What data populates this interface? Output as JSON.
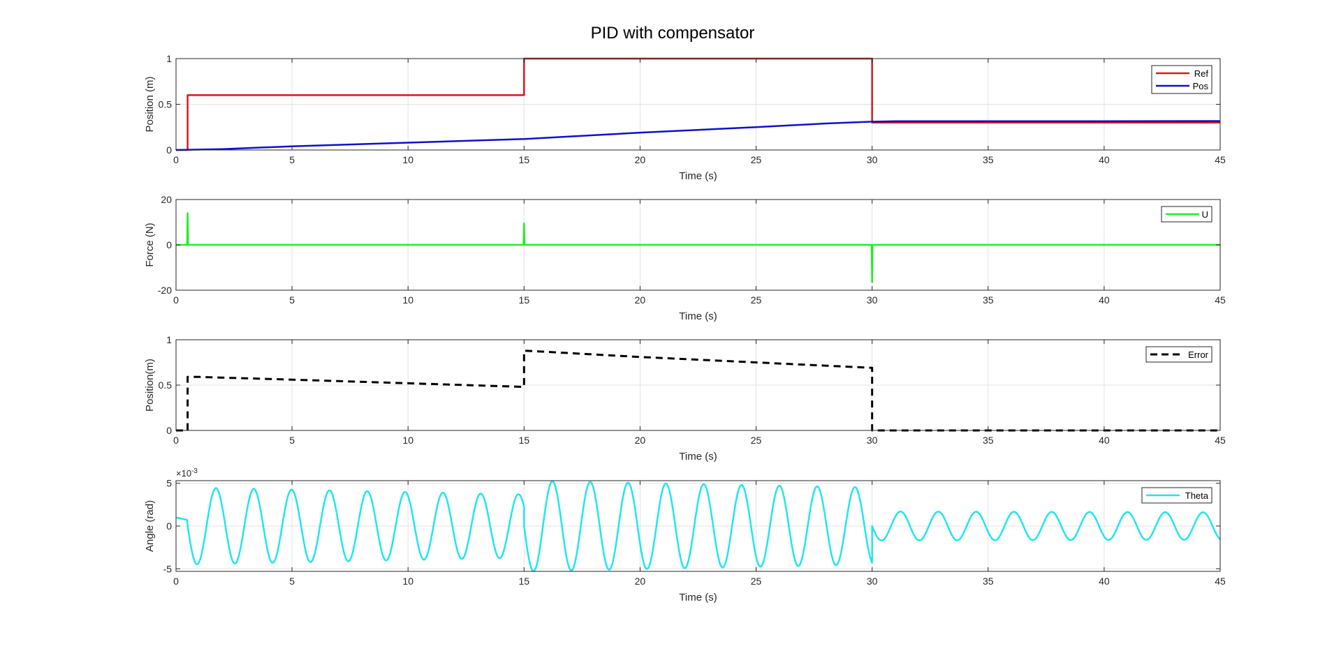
{
  "figure": {
    "title": "PID with compensator"
  },
  "colors": {
    "ref": "#d7191c",
    "pos": "#1010c8",
    "u": "#22ee22",
    "error": "#000000",
    "theta": "#22e5ee",
    "grid": "#e3e3e3",
    "axis": "#262626"
  },
  "chart_data": [
    {
      "type": "line",
      "title": "",
      "xlabel": "Time (s)",
      "ylabel": "Position (m)",
      "xlim": [
        0,
        45
      ],
      "ylim": [
        0,
        1
      ],
      "xticks": [
        0,
        5,
        10,
        15,
        20,
        25,
        30,
        35,
        40,
        45
      ],
      "yticks": [
        0,
        0.5,
        1
      ],
      "ytick_labels": [
        "0",
        "0.5",
        "1"
      ],
      "grid": true,
      "legend_position": "top-right",
      "series": [
        {
          "name": "Ref",
          "color": "#d7191c",
          "style": "solid",
          "x": [
            0,
            0.5,
            0.5,
            15,
            15,
            30,
            30,
            45
          ],
          "y": [
            0,
            0,
            0.6,
            0.6,
            1,
            1,
            0.3,
            0.3
          ]
        },
        {
          "name": "Pos",
          "color": "#1010c8",
          "style": "solid",
          "x": [
            0,
            2,
            5,
            10,
            15,
            20,
            25,
            28,
            30,
            31,
            35,
            40,
            45
          ],
          "y": [
            0,
            0.01,
            0.04,
            0.08,
            0.12,
            0.19,
            0.25,
            0.29,
            0.31,
            0.315,
            0.315,
            0.315,
            0.317
          ]
        }
      ]
    },
    {
      "type": "line",
      "title": "",
      "xlabel": "Time (s)",
      "ylabel": "Force (N)",
      "xlim": [
        0,
        45
      ],
      "ylim": [
        -20,
        20
      ],
      "xticks": [
        0,
        5,
        10,
        15,
        20,
        25,
        30,
        35,
        40,
        45
      ],
      "yticks": [
        -20,
        0,
        20
      ],
      "ytick_labels": [
        "-20",
        "0",
        "20"
      ],
      "grid": true,
      "legend_position": "top-right",
      "series": [
        {
          "name": "U",
          "color": "#22ee22",
          "style": "solid",
          "x": [
            0,
            0.48,
            0.5,
            0.52,
            14.98,
            15,
            15.02,
            29.98,
            30,
            30.02,
            45
          ],
          "y": [
            0,
            0,
            14,
            0,
            0,
            9.5,
            0,
            0,
            -16.5,
            0,
            0
          ]
        }
      ]
    },
    {
      "type": "line",
      "title": "",
      "xlabel": "Time (s)",
      "ylabel": "Position(m)",
      "xlim": [
        0,
        45
      ],
      "ylim": [
        0,
        1
      ],
      "xticks": [
        0,
        5,
        10,
        15,
        20,
        25,
        30,
        35,
        40,
        45
      ],
      "yticks": [
        0,
        0.5,
        1
      ],
      "ytick_labels": [
        "0",
        "0.5",
        "1"
      ],
      "grid": true,
      "legend_position": "top-right",
      "series": [
        {
          "name": "Error",
          "color": "#000000",
          "style": "dashed",
          "x": [
            0,
            0.5,
            0.5,
            1,
            5,
            10,
            15,
            15,
            20,
            25,
            30,
            30,
            35,
            40,
            45
          ],
          "y": [
            0,
            0,
            0.59,
            0.59,
            0.56,
            0.52,
            0.48,
            0.88,
            0.81,
            0.75,
            0.69,
            0,
            0,
            0,
            0
          ]
        }
      ]
    },
    {
      "type": "line",
      "title": "",
      "xlabel": "Time (s)",
      "ylabel": "Angle (rad)",
      "y_exponent": "×10",
      "y_exponent_power": "-3",
      "xlim": [
        0,
        45
      ],
      "ylim": [
        -5.3,
        5.3
      ],
      "xticks": [
        0,
        5,
        10,
        15,
        20,
        25,
        30,
        35,
        40,
        45
      ],
      "yticks": [
        -5,
        0,
        5
      ],
      "ytick_labels": [
        "-5",
        "0",
        "5"
      ],
      "grid": true,
      "legend_position": "top-right",
      "series": [
        {
          "name": "Theta",
          "color": "#22e5ee",
          "style": "solid",
          "model": "damped-oscillation",
          "period": 1.63,
          "segments": [
            {
              "t0": 0.5,
              "t1": 15,
              "amp_start": 4.5,
              "amp_end": 3.7
            },
            {
              "t0": 15,
              "t1": 30,
              "amp_start": 5.3,
              "amp_end": 4.5
            },
            {
              "t0": 30,
              "t1": 45,
              "amp_start": 1.7,
              "amp_end": 1.6
            }
          ],
          "initial": 1.0
        }
      ]
    }
  ]
}
